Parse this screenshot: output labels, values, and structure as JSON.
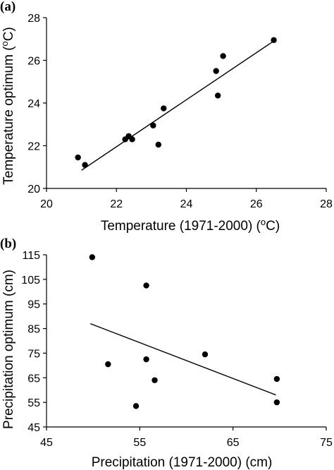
{
  "chart_data": [
    {
      "panel_label": "(a)",
      "type": "scatter",
      "xlabel": "Temperature (1971-2000) (",
      "xlabel_sup": "o",
      "xlabel_tail": "C)",
      "ylabel": "Temperature optimum (",
      "ylabel_sup": "o",
      "ylabel_tail": "C)",
      "xlim": [
        20,
        28
      ],
      "ylim": [
        20,
        28
      ],
      "x_ticks": [
        20,
        22,
        24,
        26,
        28
      ],
      "y_ticks": [
        20,
        22,
        24,
        26,
        28
      ],
      "points": [
        {
          "x": 20.9,
          "y": 21.45
        },
        {
          "x": 21.1,
          "y": 21.1
        },
        {
          "x": 22.25,
          "y": 22.3
        },
        {
          "x": 22.35,
          "y": 22.45
        },
        {
          "x": 22.45,
          "y": 22.3
        },
        {
          "x": 23.05,
          "y": 22.95
        },
        {
          "x": 23.2,
          "y": 22.05
        },
        {
          "x": 23.35,
          "y": 23.75
        },
        {
          "x": 24.85,
          "y": 25.5
        },
        {
          "x": 24.9,
          "y": 24.35
        },
        {
          "x": 25.05,
          "y": 26.2
        },
        {
          "x": 26.5,
          "y": 26.95
        }
      ],
      "trendline": [
        {
          "x": 21.0,
          "y": 20.85
        },
        {
          "x": 26.45,
          "y": 26.85
        }
      ]
    },
    {
      "panel_label": "(b)",
      "type": "scatter",
      "xlabel": "Precipitation (1971-2000) (cm)",
      "ylabel": "Precipitation optimum (cm)",
      "xlim": [
        45,
        75
      ],
      "ylim": [
        45,
        115
      ],
      "x_ticks": [
        45,
        55,
        65,
        75
      ],
      "y_ticks": [
        45,
        55,
        65,
        75,
        85,
        95,
        105,
        115
      ],
      "points": [
        {
          "x": 49.9,
          "y": 114.0
        },
        {
          "x": 51.6,
          "y": 70.5
        },
        {
          "x": 54.6,
          "y": 53.5
        },
        {
          "x": 55.7,
          "y": 102.5
        },
        {
          "x": 55.7,
          "y": 72.5
        },
        {
          "x": 56.6,
          "y": 64.0
        },
        {
          "x": 62.0,
          "y": 74.5
        },
        {
          "x": 69.7,
          "y": 64.5
        },
        {
          "x": 69.7,
          "y": 55.0
        }
      ],
      "trendline": [
        {
          "x": 49.7,
          "y": 87.0
        },
        {
          "x": 69.6,
          "y": 58.0
        }
      ]
    }
  ]
}
